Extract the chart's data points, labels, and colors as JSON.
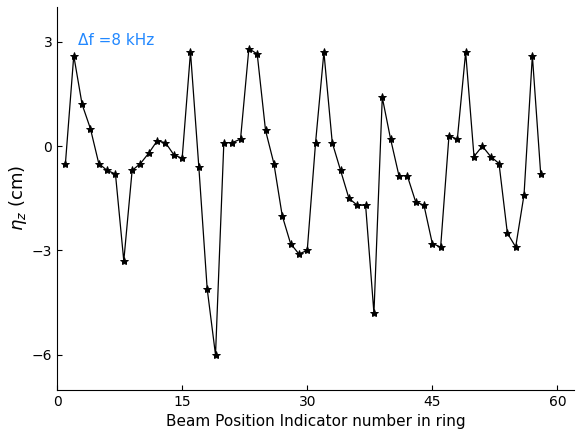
{
  "x": [
    1,
    2,
    3,
    4,
    5,
    6,
    7,
    8,
    9,
    10,
    11,
    12,
    13,
    14,
    15,
    16,
    17,
    18,
    19,
    20,
    21,
    22,
    23,
    24,
    25,
    26,
    27,
    28,
    29,
    30,
    31,
    32,
    33,
    34,
    35,
    36,
    37,
    38,
    39,
    40,
    41,
    42,
    43,
    44,
    45,
    46,
    47,
    48,
    49,
    50,
    51,
    52,
    53,
    54,
    55,
    56,
    57,
    58
  ],
  "y": [
    -0.5,
    2.6,
    1.2,
    0.5,
    -0.5,
    -0.7,
    -0.8,
    -3.3,
    -0.7,
    -0.5,
    -0.2,
    0.15,
    0.1,
    -0.25,
    -0.35,
    2.7,
    -0.6,
    -4.1,
    -6.0,
    0.1,
    0.1,
    0.2,
    2.8,
    2.65,
    0.45,
    -0.5,
    -2.0,
    -2.8,
    -3.1,
    -3.0,
    0.1,
    2.7,
    0.1,
    -0.7,
    -1.5,
    -1.7,
    -1.7,
    -4.8,
    1.4,
    0.2,
    -0.85,
    -0.85,
    -1.6,
    -1.7,
    -2.8,
    -2.9,
    0.3,
    0.2,
    2.7,
    -0.3,
    0.0,
    -0.3,
    -0.5,
    -2.5,
    -2.9,
    -1.4,
    2.6,
    -0.8
  ],
  "annotation": "Δf =8 kHz",
  "xlabel": "Beam Position Indicator number in ring",
  "ylabel": "$\\eta_{z}$ (cm)",
  "xlim": [
    0,
    62
  ],
  "ylim": [
    -7,
    4
  ],
  "yticks": [
    -6,
    -3,
    0,
    3
  ],
  "xticks": [
    0,
    15,
    30,
    45,
    60
  ],
  "line_color": "black",
  "marker": "*",
  "marker_size": 6,
  "annotation_color": "#2288FF",
  "annotation_fontsize": 11,
  "xlabel_fontsize": 11,
  "ylabel_fontsize": 13,
  "tick_fontsize": 10,
  "figsize": [
    5.81,
    4.36
  ],
  "dpi": 100
}
